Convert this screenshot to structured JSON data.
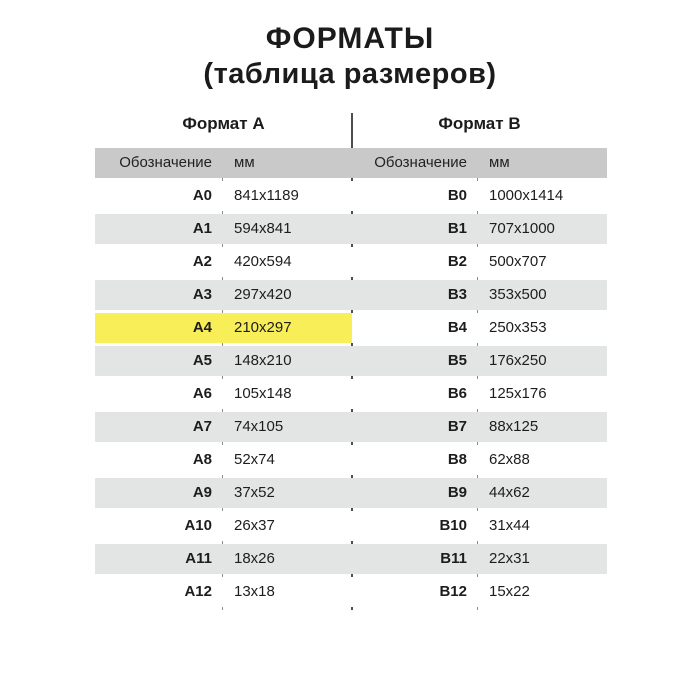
{
  "title": "ФОРМАТЫ",
  "subtitle": "(таблица размеров)",
  "highlight": {
    "row_code": "A4",
    "color": "#f7ee58"
  },
  "colors": {
    "background": "#ffffff",
    "header_band": "#c9c9c9",
    "stripe": "#e3e5e5",
    "divider_line": "#4d4d4d",
    "column_line": "#8c8c8c",
    "text": "#1d1d1d"
  },
  "chart_data": [
    {
      "type": "table",
      "title": "Формат А",
      "columns": [
        "Обозначение",
        "мм"
      ],
      "rows": [
        [
          "A0",
          "841x1189"
        ],
        [
          "A1",
          "594x841"
        ],
        [
          "A2",
          "420x594"
        ],
        [
          "A3",
          "297x420"
        ],
        [
          "A4",
          "210x297"
        ],
        [
          "A5",
          "148x210"
        ],
        [
          "A6",
          "105x148"
        ],
        [
          "A7",
          "74x105"
        ],
        [
          "A8",
          "52x74"
        ],
        [
          "A9",
          "37x52"
        ],
        [
          "A10",
          "26x37"
        ],
        [
          "A11",
          "18x26"
        ],
        [
          "A12",
          "13x18"
        ]
      ]
    },
    {
      "type": "table",
      "title": "Формат В",
      "columns": [
        "Обозначение",
        "мм"
      ],
      "rows": [
        [
          "B0",
          "1000x1414"
        ],
        [
          "B1",
          "707x1000"
        ],
        [
          "B2",
          "500x707"
        ],
        [
          "B3",
          "353x500"
        ],
        [
          "B4",
          "250x353"
        ],
        [
          "B5",
          "176x250"
        ],
        [
          "B6",
          "125x176"
        ],
        [
          "B7",
          "88x125"
        ],
        [
          "B8",
          "62x88"
        ],
        [
          "B9",
          "44x62"
        ],
        [
          "B10",
          "31x44"
        ],
        [
          "B11",
          "22x31"
        ],
        [
          "B12",
          "15x22"
        ]
      ]
    }
  ]
}
